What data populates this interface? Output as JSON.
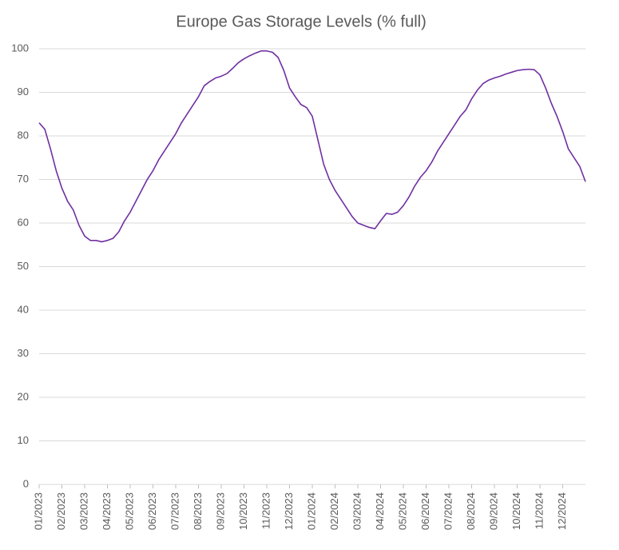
{
  "chart_data": {
    "type": "line",
    "title": "Europe Gas Storage Levels (% full)",
    "x": [
      0,
      0.25,
      0.5,
      0.75,
      1,
      1.25,
      1.5,
      1.75,
      2,
      2.25,
      2.5,
      2.75,
      3,
      3.25,
      3.5,
      3.75,
      4,
      4.25,
      4.5,
      4.75,
      5,
      5.25,
      5.5,
      5.75,
      6,
      6.25,
      6.5,
      6.75,
      7,
      7.25,
      7.5,
      7.75,
      8,
      8.25,
      8.5,
      8.75,
      9,
      9.25,
      9.5,
      9.75,
      10,
      10.25,
      10.5,
      10.75,
      11,
      11.25,
      11.5,
      11.75,
      12,
      12.25,
      12.5,
      12.75,
      13,
      13.25,
      13.5,
      13.75,
      14,
      14.25,
      14.5,
      14.75,
      15,
      15.25,
      15.5,
      15.75,
      16,
      16.25,
      16.5,
      16.75,
      17,
      17.25,
      17.5,
      17.75,
      18,
      18.25,
      18.5,
      18.75,
      19,
      19.25,
      19.5,
      19.75,
      20,
      20.25,
      20.5,
      20.75,
      21,
      21.25,
      21.5,
      21.75,
      22,
      22.25,
      22.5,
      22.75,
      23,
      23.25,
      23.5,
      23.75,
      24
    ],
    "values": [
      83,
      81.5,
      77,
      72,
      68,
      65,
      63,
      59.5,
      57,
      56,
      56,
      55.7,
      56,
      56.5,
      58,
      60.5,
      62.5,
      65,
      67.5,
      70,
      72,
      74.5,
      76.5,
      78.5,
      80.5,
      83,
      85,
      87,
      89,
      91.5,
      92.5,
      93.3,
      93.7,
      94.3,
      95.5,
      96.8,
      97.7,
      98.4,
      99,
      99.5,
      99.5,
      99.2,
      98,
      95,
      91,
      89,
      87.2,
      86.5,
      84.5,
      79,
      73.5,
      70,
      67.5,
      65.5,
      63.5,
      61.5,
      60,
      59.5,
      59,
      58.7,
      60.5,
      62.2,
      62,
      62.5,
      64,
      66,
      68.5,
      70.5,
      72,
      74,
      76.5,
      78.5,
      80.5,
      82.5,
      84.5,
      86,
      88.5,
      90.5,
      92,
      92.8,
      93.3,
      93.7,
      94.2,
      94.6,
      95,
      95.2,
      95.3,
      95.2,
      94,
      91,
      87.5,
      84.5,
      81,
      77,
      75,
      73,
      69.5
    ],
    "color": "#7030a0",
    "xlim": [
      0,
      24
    ],
    "xticks": [
      {
        "value": 0,
        "label": "01/2023"
      },
      {
        "value": 1,
        "label": "02/2023"
      },
      {
        "value": 2,
        "label": "03/2023"
      },
      {
        "value": 3,
        "label": "04/2023"
      },
      {
        "value": 4,
        "label": "05/2023"
      },
      {
        "value": 5,
        "label": "06/2023"
      },
      {
        "value": 6,
        "label": "07/2023"
      },
      {
        "value": 7,
        "label": "08/2023"
      },
      {
        "value": 8,
        "label": "09/2023"
      },
      {
        "value": 9,
        "label": "10/2023"
      },
      {
        "value": 10,
        "label": "11/2023"
      },
      {
        "value": 11,
        "label": "12/2023"
      },
      {
        "value": 12,
        "label": "01/2024"
      },
      {
        "value": 13,
        "label": "02/2024"
      },
      {
        "value": 14,
        "label": "03/2024"
      },
      {
        "value": 15,
        "label": "04/2024"
      },
      {
        "value": 16,
        "label": "05/2024"
      },
      {
        "value": 17,
        "label": "06/2024"
      },
      {
        "value": 18,
        "label": "07/2024"
      },
      {
        "value": 19,
        "label": "08/2024"
      },
      {
        "value": 20,
        "label": "09/2024"
      },
      {
        "value": 21,
        "label": "10/2024"
      },
      {
        "value": 22,
        "label": "11/2024"
      },
      {
        "value": 23,
        "label": "12/2024"
      }
    ],
    "ylim": [
      0,
      100
    ],
    "yticks": [
      0,
      10,
      20,
      30,
      40,
      50,
      60,
      70,
      80,
      90,
      100
    ],
    "grid": true
  }
}
